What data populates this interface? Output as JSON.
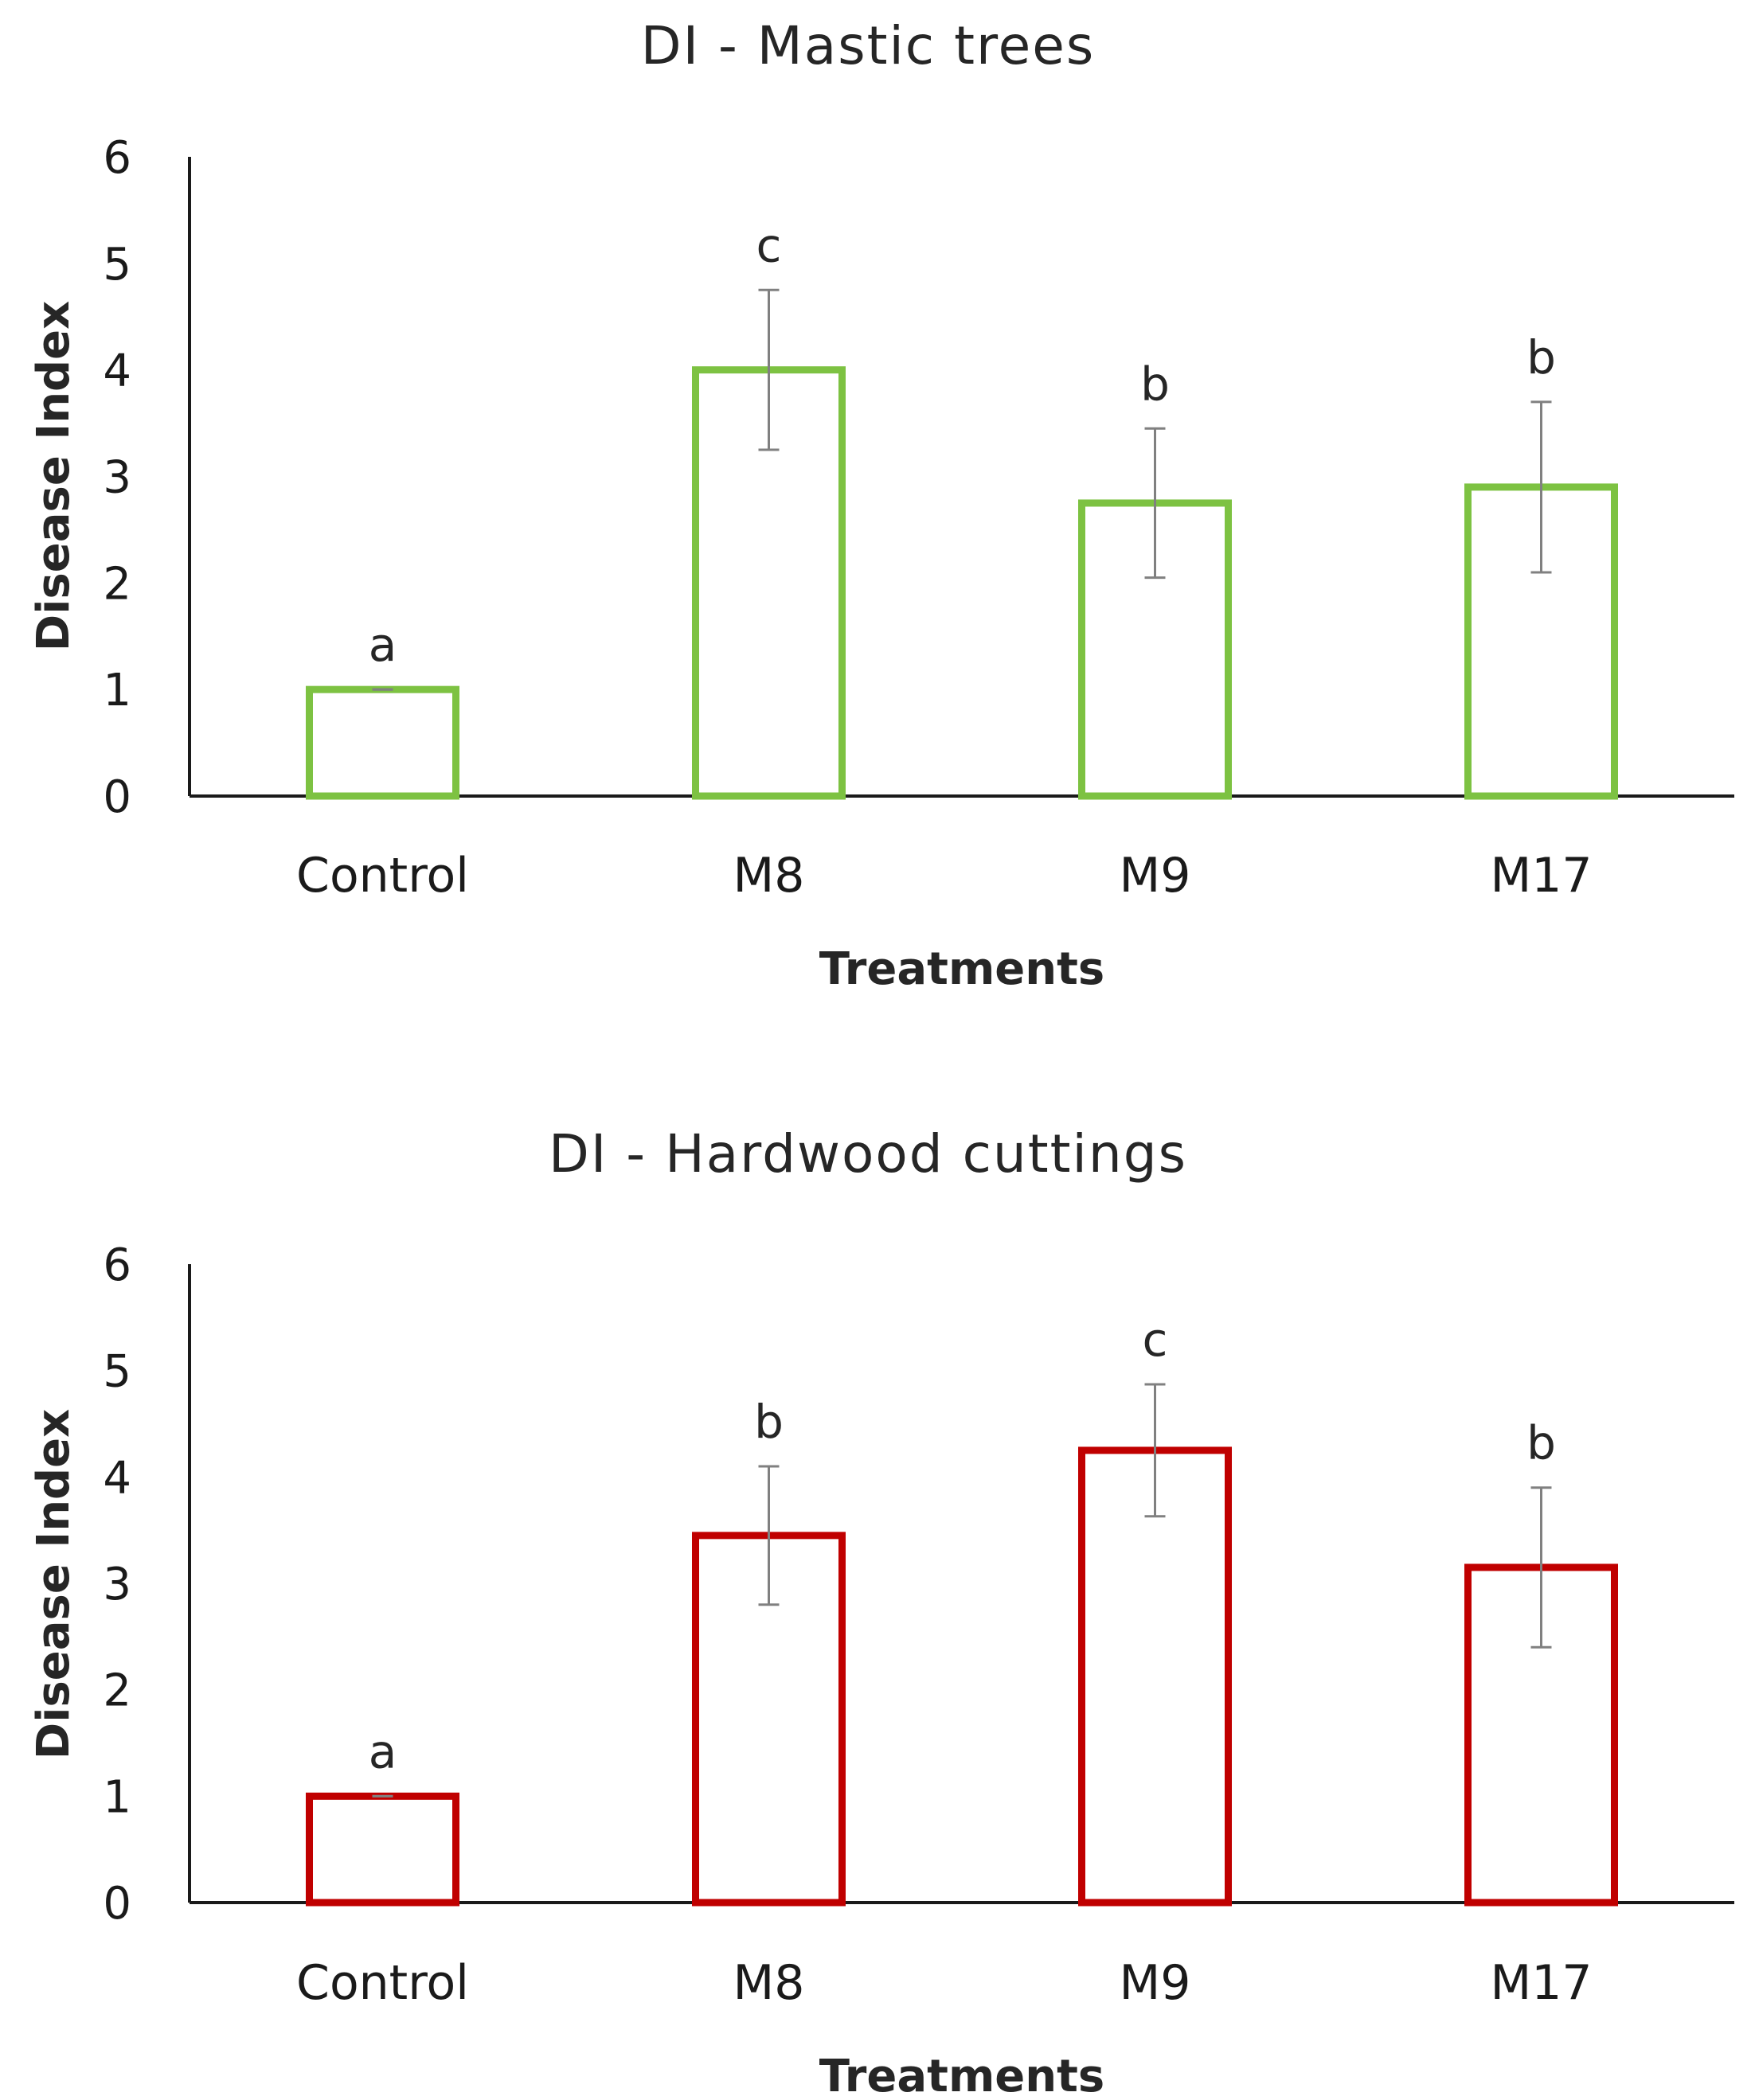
{
  "chart_data": [
    {
      "type": "bar",
      "title": "DI - Mastic trees",
      "xlabel": "Treatments",
      "ylabel": "Disease Index",
      "ylim": [
        0,
        6
      ],
      "yticks": [
        "0",
        "1",
        "2",
        "3",
        "4",
        "5",
        "6"
      ],
      "categories": [
        "Control",
        "M8",
        "M9",
        "M17"
      ],
      "values": [
        1.0,
        4.0,
        2.75,
        2.9
      ],
      "errors": [
        0.0,
        0.75,
        0.7,
        0.8
      ],
      "significance": [
        "a",
        "c",
        "b",
        "b"
      ],
      "bar_outline_color": "#7dc242",
      "error_bar_color": "#808080",
      "grid": false
    },
    {
      "type": "bar",
      "title": "DI - Hardwood cuttings",
      "xlabel": "Treatments",
      "ylabel": "Disease Index",
      "ylim": [
        0,
        6
      ],
      "yticks": [
        "0",
        "1",
        "2",
        "3",
        "4",
        "5",
        "6"
      ],
      "categories": [
        "Control",
        "M8",
        "M9",
        "M17"
      ],
      "values": [
        1.0,
        3.45,
        4.25,
        3.15
      ],
      "errors": [
        0.0,
        0.65,
        0.62,
        0.75
      ],
      "significance": [
        "a",
        "b",
        "c",
        "b"
      ],
      "bar_outline_color": "#c00000",
      "error_bar_color": "#808080",
      "grid": false
    }
  ]
}
